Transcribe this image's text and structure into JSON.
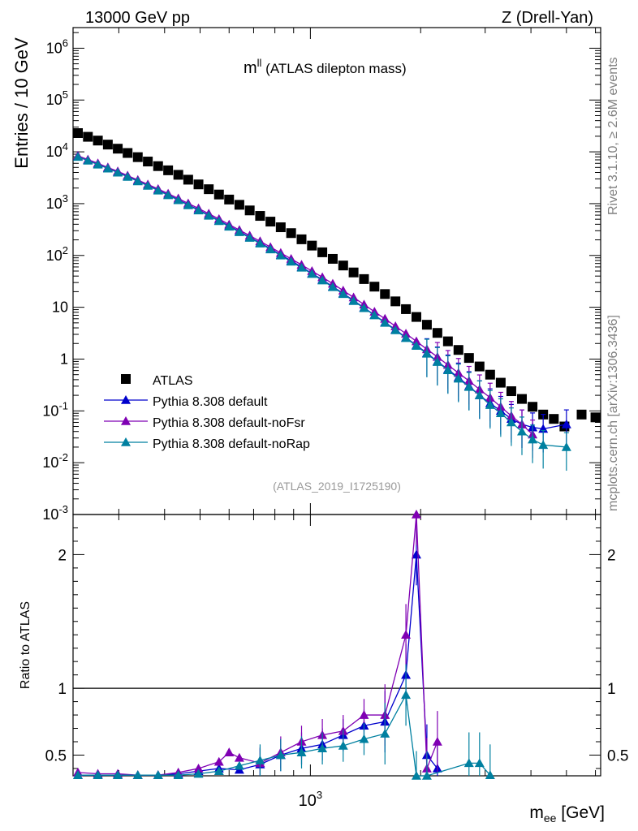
{
  "header": {
    "left": "13000 GeV pp",
    "right": "Z (Drell-Yan)"
  },
  "side_labels": {
    "rivet": "Rivet 3.1.10, ≥ 2.6M events",
    "mcplots": "mcplots.cern.ch [arXiv:1306.3436]"
  },
  "colors": {
    "atlas": "#000000",
    "default": "#0000cc",
    "noFsr": "#7f00b3",
    "noRap": "#0080a0"
  },
  "chart_data": [
    {
      "type": "scatter",
      "title_main": "m",
      "title_sup": "ll",
      "title_rest": " (ATLAS dilepton mass)",
      "analysis_tag": "(ATLAS_2019_I1725190)",
      "ylabel": "Entries / 10 GeV",
      "yscale": "log",
      "xscale": "log",
      "xlim": [
        225,
        6200
      ],
      "ylim": [
        0.001,
        2500000
      ],
      "ytick_labels": [
        "10^-3",
        "10^-2",
        "10^-1",
        "1",
        "10",
        "10^2",
        "10^3",
        "10^4",
        "10^5",
        "10^6"
      ],
      "legend_position": "lower-left",
      "series": [
        {
          "name": "ATLAS",
          "marker": "square",
          "x": [
            232,
            247,
            263,
            280,
            298,
            317,
            338,
            360,
            384,
            409,
            436,
            464,
            495,
            528,
            563,
            600,
            640,
            683,
            729,
            778,
            830,
            886,
            946,
            1010,
            1078,
            1151,
            1229,
            1312,
            1401,
            1496,
            1598,
            1707,
            1823,
            1947,
            2080,
            2222,
            2374,
            2536,
            2710,
            2896,
            3095,
            3308,
            3536,
            3780,
            4041,
            4320,
            4619,
            4938,
            5500,
            6000
          ],
          "y": [
            23000,
            19500,
            16500,
            13800,
            11500,
            9500,
            7900,
            6500,
            5300,
            4400,
            3600,
            2900,
            2350,
            1900,
            1500,
            1200,
            950,
            740,
            580,
            450,
            350,
            270,
            205,
            155,
            115,
            86,
            64,
            47,
            35,
            25,
            18,
            13,
            9.2,
            6.5,
            4.6,
            3.2,
            2.2,
            1.5,
            1.05,
            0.72,
            0.5,
            0.35,
            0.24,
            0.17,
            0.12,
            0.085,
            0.07,
            0.05,
            0.085,
            0.075
          ]
        },
        {
          "name": "Pythia 8.308 default",
          "marker": "triangle",
          "x": [
            232,
            247,
            263,
            280,
            298,
            317,
            338,
            360,
            384,
            409,
            436,
            464,
            495,
            528,
            563,
            600,
            640,
            683,
            729,
            778,
            830,
            886,
            946,
            1010,
            1078,
            1151,
            1229,
            1312,
            1401,
            1496,
            1598,
            1707,
            1823,
            1947,
            2080,
            2222,
            2374,
            2536,
            2710,
            2896,
            3095,
            3308,
            3536,
            3780,
            4041,
            4320,
            5000
          ],
          "y": [
            8200,
            6900,
            5800,
            4850,
            4050,
            3350,
            2750,
            2250,
            1820,
            1480,
            1190,
            950,
            760,
            600,
            470,
            370,
            290,
            225,
            175,
            135,
            103,
            79,
            60,
            45,
            34,
            25,
            18.5,
            13.5,
            9.8,
            7.1,
            5.1,
            3.7,
            2.6,
            1.85,
            1.3,
            0.9,
            0.63,
            0.44,
            0.3,
            0.2,
            0.14,
            0.1,
            0.07,
            0.055,
            0.048,
            0.045,
            0.055
          ]
        },
        {
          "name": "Pythia 8.308 default-noFsr",
          "marker": "triangle",
          "x": [
            232,
            247,
            263,
            280,
            298,
            317,
            338,
            360,
            384,
            409,
            436,
            464,
            495,
            528,
            563,
            600,
            640,
            683,
            729,
            778,
            830,
            886,
            946,
            1010,
            1078,
            1151,
            1229,
            1312,
            1401,
            1496,
            1598,
            1707,
            1823,
            1947,
            2080,
            2222,
            2374,
            2536,
            2710,
            2896,
            3095,
            3308,
            3536,
            3780,
            4041
          ],
          "y": [
            8400,
            7100,
            6000,
            5000,
            4200,
            3480,
            2860,
            2350,
            1920,
            1560,
            1260,
            1010,
            810,
            640,
            505,
            395,
            310,
            242,
            188,
            145,
            112,
            86,
            66,
            50,
            38,
            28.5,
            21,
            15.5,
            11.3,
            8.2,
            6.0,
            4.3,
            3.1,
            2.2,
            1.55,
            1.1,
            0.77,
            0.54,
            0.38,
            0.26,
            0.18,
            0.12,
            0.08,
            0.055,
            0.035
          ]
        },
        {
          "name": "Pythia 8.308 default-noRap",
          "marker": "triangle",
          "x": [
            232,
            247,
            263,
            280,
            298,
            317,
            338,
            360,
            384,
            409,
            436,
            464,
            495,
            528,
            563,
            600,
            640,
            683,
            729,
            778,
            830,
            886,
            946,
            1010,
            1078,
            1151,
            1229,
            1312,
            1401,
            1496,
            1598,
            1707,
            1823,
            1947,
            2080,
            2222,
            2374,
            2536,
            2710,
            2896,
            3095,
            3308,
            3536,
            3780,
            4041,
            4320,
            5000
          ],
          "y": [
            8000,
            6750,
            5680,
            4760,
            3970,
            3290,
            2700,
            2210,
            1790,
            1450,
            1165,
            930,
            740,
            585,
            460,
            360,
            282,
            219,
            170,
            131,
            100,
            76,
            58,
            44,
            33,
            24.5,
            18,
            13.2,
            9.6,
            7.0,
            5.0,
            3.6,
            2.55,
            1.8,
            1.27,
            0.88,
            0.61,
            0.42,
            0.29,
            0.2,
            0.13,
            0.09,
            0.06,
            0.04,
            0.028,
            0.022,
            0.02
          ]
        }
      ]
    },
    {
      "type": "line",
      "ylabel": "Ratio to ATLAS",
      "xlabel_main": "m",
      "xlabel_sub": "ee",
      "xlabel_rest": " [GeV]",
      "xscale": "log",
      "xlim": [
        225,
        6200
      ],
      "ylim": [
        0.345,
        2.3
      ],
      "ytick_labels": [
        "0.5",
        "1",
        "2"
      ],
      "xtick_label_main": "10",
      "xtick_label_sup": "3",
      "xtick_value": 1000,
      "reference_line": 1,
      "series": [
        {
          "name": "Pythia 8.308 default",
          "x": [
            232,
            263,
            298,
            338,
            384,
            436,
            495,
            563,
            640,
            729,
            830,
            946,
            1078,
            1229,
            1401,
            1598,
            1823,
            1947,
            2080,
            2222
          ],
          "y": [
            0.35,
            0.35,
            0.35,
            0.35,
            0.35,
            0.36,
            0.38,
            0.4,
            0.39,
            0.43,
            0.5,
            0.55,
            0.58,
            0.65,
            0.72,
            0.75,
            1.1,
            2.0,
            0.5,
            0.4
          ]
        },
        {
          "name": "Pythia 8.308 default-noFsr",
          "x": [
            232,
            263,
            298,
            338,
            384,
            436,
            495,
            563,
            600,
            640,
            729,
            830,
            946,
            1078,
            1229,
            1401,
            1598,
            1823,
            1947,
            2080,
            2222
          ],
          "y": [
            0.37,
            0.36,
            0.36,
            0.35,
            0.35,
            0.37,
            0.4,
            0.45,
            0.52,
            0.48,
            0.44,
            0.52,
            0.6,
            0.65,
            0.68,
            0.8,
            0.8,
            1.4,
            2.3,
            0.4,
            0.6
          ]
        },
        {
          "name": "Pythia 8.308 default-noRap",
          "x": [
            232,
            263,
            298,
            338,
            384,
            436,
            495,
            563,
            640,
            729,
            830,
            946,
            1078,
            1229,
            1401,
            1598,
            1823,
            1947,
            2080,
            2710,
            2896,
            3095
          ],
          "y": [
            0.35,
            0.35,
            0.35,
            0.35,
            0.35,
            0.35,
            0.36,
            0.38,
            0.42,
            0.46,
            0.5,
            0.52,
            0.55,
            0.57,
            0.62,
            0.66,
            0.95,
            0.3,
            0.3,
            0.44,
            0.44,
            0.35
          ]
        }
      ]
    }
  ]
}
